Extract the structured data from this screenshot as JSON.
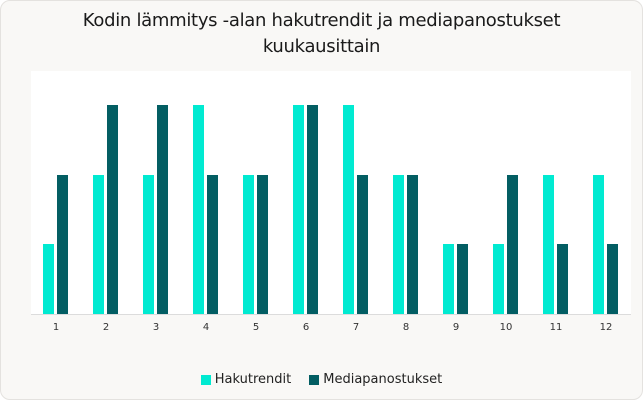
{
  "chart_data": {
    "type": "bar",
    "title": "Kodin lämmitys -alan hakutrendit ja mediapanostukset kuukausittain",
    "xlabel": "",
    "ylabel": "",
    "categories": [
      "1",
      "2",
      "3",
      "4",
      "5",
      "6",
      "7",
      "8",
      "9",
      "10",
      "11",
      "12"
    ],
    "series": [
      {
        "name": "Hakutrendit",
        "color": "#00ead1",
        "values": [
          1,
          2,
          2,
          3,
          2,
          3,
          3,
          2,
          1,
          1,
          2,
          2
        ]
      },
      {
        "name": "Mediapanostukset",
        "color": "#035e63",
        "values": [
          2,
          3,
          3,
          2,
          2,
          3,
          2,
          2,
          1,
          2,
          1,
          1
        ]
      }
    ],
    "ylim": [
      0,
      3.5
    ],
    "grid": false,
    "legend_position": "bottom"
  },
  "title_line1": "Kodin lämmitys -alan hakutrendit ja mediapanostukset",
  "title_line2": "kuukausittain",
  "legend": {
    "series1_label": "Hakutrendit",
    "series2_label": "Mediapanostukset"
  }
}
